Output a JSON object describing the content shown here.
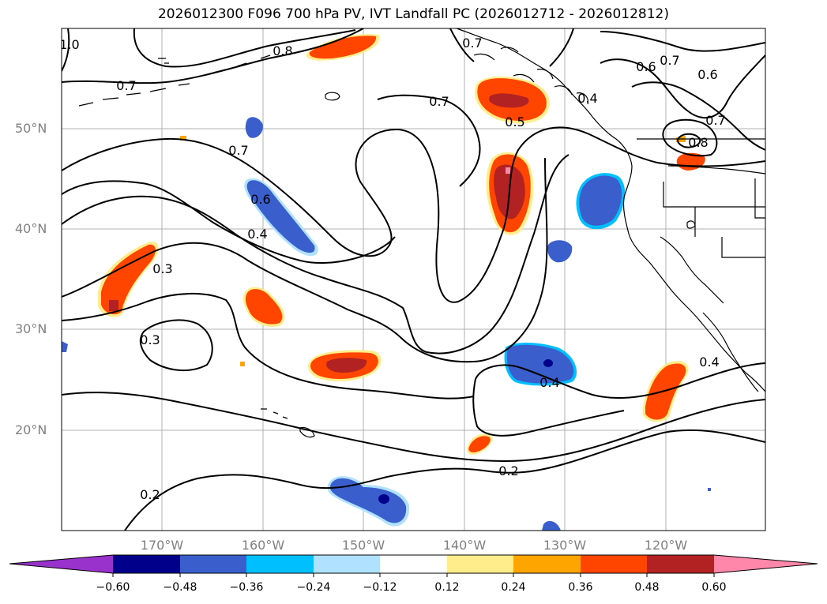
{
  "title": "2026012300 F096 700 hPa PV, IVT Landfall PC (2026012712 - 2026012812)",
  "map": {
    "lat_labels": [
      "50°N",
      "40°N",
      "30°N",
      "20°N"
    ],
    "lon_labels": [
      "170°W",
      "160°W",
      "150°W",
      "140°W",
      "130°W",
      "120°W"
    ],
    "contour_labels": [
      "0.7",
      "0.8",
      "0.7",
      "0.7",
      "0.6",
      "0.6",
      "0.7",
      "0.7",
      "0.8",
      "0.5",
      "0.4",
      "0.7",
      "0.6",
      "0.4",
      "0.3",
      "0.3",
      "0.4",
      "0.4",
      "0.2",
      "0.2",
      "1.0"
    ]
  },
  "colorbar": {
    "ticks": [
      "−0.60",
      "−0.48",
      "−0.36",
      "−0.24",
      "−0.12",
      "0.12",
      "0.24",
      "0.36",
      "0.48",
      "0.60"
    ],
    "colors": [
      "#9932cc",
      "#00008b",
      "#3a5fcd",
      "#00bfff",
      "#b0e2ff",
      "#ffffff",
      "#ffec8b",
      "#ffa500",
      "#ff4500",
      "#b22222",
      "#ff88aa"
    ]
  }
}
